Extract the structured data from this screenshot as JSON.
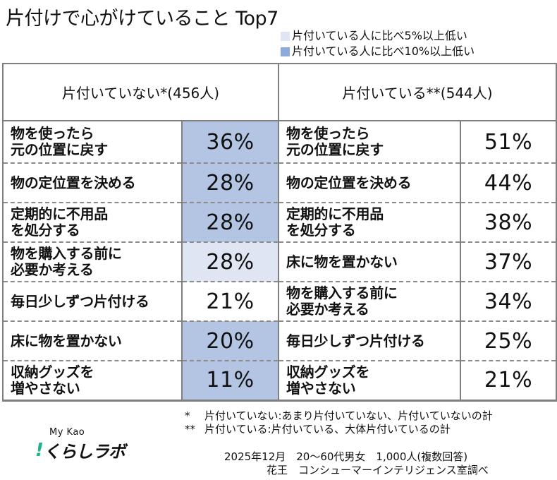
{
  "title": "片付けで心がけていること Top7",
  "legend": [
    {
      "label": "片付いている人に比べ5%以上低い",
      "color": "#dfe5f3"
    },
    {
      "label": "片付いている人に比べ10%以上低い",
      "color": "#8eaadb"
    }
  ],
  "columns": {
    "left_header": "片付いていない*(456人)",
    "right_header": "片付いている**(544人)"
  },
  "rows": [
    {
      "left_item": "物を使ったら\n元の位置に戻す",
      "left_pct": "36%",
      "left_level": "10",
      "right_item": "物を使ったら\n元の位置に戻す",
      "right_pct": "51%"
    },
    {
      "left_item": "物の定位置を決める",
      "left_pct": "28%",
      "left_level": "10",
      "right_item": "物の定位置を決める",
      "right_pct": "44%"
    },
    {
      "left_item": "定期的に不用品\nを処分する",
      "left_pct": "28%",
      "left_level": "10",
      "right_item": "定期的に不用品\nを処分する",
      "right_pct": "38%"
    },
    {
      "left_item": "物を購入する前に\n必要か考える",
      "left_pct": "28%",
      "left_level": "5",
      "right_item": "床に物を置かない",
      "right_pct": "37%"
    },
    {
      "left_item": "毎日少しずつ片付ける",
      "left_pct": "21%",
      "left_level": "",
      "right_item": "物を購入する前に\n必要か考える",
      "right_pct": "34%"
    },
    {
      "left_item": "床に物を置かない",
      "left_pct": "20%",
      "left_level": "10",
      "right_item": "毎日少しずつ片付ける",
      "right_pct": "25%"
    },
    {
      "left_item": "収納グッズを\n増やさない",
      "left_pct": "11%",
      "left_level": "10",
      "right_item": "収納グッズを\n増やさない",
      "right_pct": "21%"
    }
  ],
  "notes": [
    {
      "mark": "*",
      "text": "片付いていない:あまり片付いていない、片付いていないの計"
    },
    {
      "mark": "**",
      "text": "片付いている:片付いている、大体片付いているの計"
    }
  ],
  "survey": {
    "line1": "2025年12月　20～60代男女　1,000人(複数回答)",
    "line2": "花王　コンシューマーインテリジェンス室調べ"
  },
  "logo": {
    "top": "My Kao",
    "main": "くらしラボ",
    "bang": "!",
    "accent_color": "#1fb18a"
  }
}
